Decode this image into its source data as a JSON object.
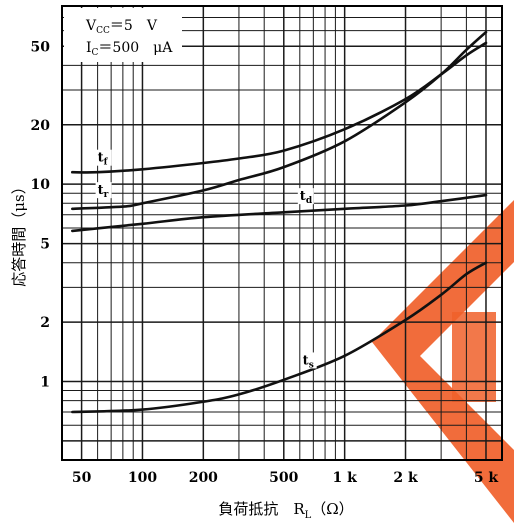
{
  "chart_data": {
    "type": "line",
    "title": "",
    "xlabel": "負荷抵抗　R",
    "xlabel_sub": "L",
    "xlabel_unit": "（Ω）",
    "ylabel": "応答時間（μs）",
    "xscale": "log",
    "yscale": "log",
    "xlim": [
      40,
      6000
    ],
    "ylim": [
      0.4,
      80
    ],
    "grid": true,
    "x_ticks": [
      {
        "value": 50,
        "label": "50"
      },
      {
        "value": 100,
        "label": "100"
      },
      {
        "value": 200,
        "label": "200"
      },
      {
        "value": 500,
        "label": "500"
      },
      {
        "value": 1000,
        "label": "1 k"
      },
      {
        "value": 2000,
        "label": "2 k"
      },
      {
        "value": 5000,
        "label": "5 k"
      }
    ],
    "y_ticks": [
      {
        "value": 1,
        "label": "1"
      },
      {
        "value": 2,
        "label": "2"
      },
      {
        "value": 5,
        "label": "5"
      },
      {
        "value": 10,
        "label": "10"
      },
      {
        "value": 20,
        "label": "20"
      },
      {
        "value": 50,
        "label": "50"
      }
    ],
    "conditions": [
      {
        "main": "V",
        "sub": "CC",
        "rest": "＝5　V"
      },
      {
        "main": "I",
        "sub": "C",
        "rest": "＝500　μA"
      }
    ],
    "series": [
      {
        "name": "t",
        "sub": "f",
        "label_at": [
          60,
          13
        ],
        "points": [
          [
            45,
            11.5
          ],
          [
            60,
            11.5
          ],
          [
            100,
            11.9
          ],
          [
            200,
            12.8
          ],
          [
            300,
            13.5
          ],
          [
            500,
            14.8
          ],
          [
            1000,
            19
          ],
          [
            2000,
            27
          ],
          [
            3000,
            36
          ],
          [
            4000,
            45
          ],
          [
            5000,
            52
          ]
        ]
      },
      {
        "name": "t",
        "sub": "r",
        "label_at": [
          60,
          8.9
        ],
        "points": [
          [
            45,
            7.5
          ],
          [
            80,
            7.7
          ],
          [
            100,
            8.0
          ],
          [
            200,
            9.3
          ],
          [
            300,
            10.5
          ],
          [
            500,
            12.2
          ],
          [
            1000,
            16.5
          ],
          [
            2000,
            26
          ],
          [
            3000,
            36
          ],
          [
            4000,
            48
          ],
          [
            5000,
            59
          ]
        ]
      },
      {
        "name": "t",
        "sub": "d",
        "label_at": [
          600,
          8.3
        ],
        "points": [
          [
            45,
            5.8
          ],
          [
            100,
            6.3
          ],
          [
            200,
            6.8
          ],
          [
            500,
            7.2
          ],
          [
            1000,
            7.5
          ],
          [
            2000,
            7.8
          ],
          [
            3000,
            8.2
          ],
          [
            5000,
            8.8
          ]
        ]
      },
      {
        "name": "t",
        "sub": "s",
        "label_at": [
          620,
          1.22
        ],
        "points": [
          [
            45,
            0.7
          ],
          [
            100,
            0.72
          ],
          [
            200,
            0.79
          ],
          [
            300,
            0.86
          ],
          [
            500,
            1.02
          ],
          [
            1000,
            1.35
          ],
          [
            2000,
            2.05
          ],
          [
            3000,
            2.75
          ],
          [
            4000,
            3.5
          ],
          [
            5000,
            4.0
          ]
        ]
      }
    ],
    "colors": {
      "line": "#111111",
      "grid": "#1a1a1a",
      "watermark": "#f0602a"
    }
  }
}
